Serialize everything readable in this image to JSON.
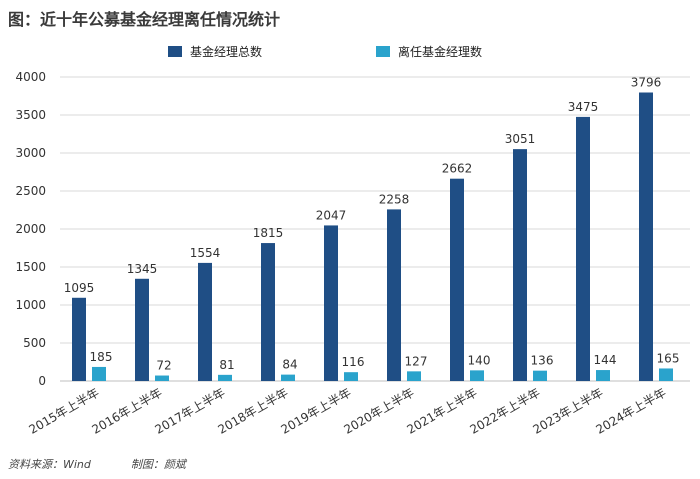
{
  "title": "图：近十年公募基金经理离任情况统计",
  "source": "资料来源：Wind",
  "maker": "制图：颜斌",
  "colors": {
    "total": "#1f4e85",
    "departed": "#2aa3cc",
    "grid": "#d9d9d9"
  },
  "chart_data": {
    "type": "bar",
    "categories": [
      "2015年上半年",
      "2016年上半年",
      "2017年上半年",
      "2018年上半年",
      "2019年上半年",
      "2020年上半年",
      "2021年上半年",
      "2022年上半年",
      "2023年上半年",
      "2024年上半年"
    ],
    "series": [
      {
        "name": "基金经理总数",
        "values": [
          1095,
          1345,
          1554,
          1815,
          2047,
          2258,
          2662,
          3051,
          3475,
          3796
        ]
      },
      {
        "name": "离任基金经理数",
        "values": [
          185,
          72,
          81,
          84,
          116,
          127,
          140,
          136,
          144,
          165
        ]
      }
    ],
    "ylim": [
      0,
      4000
    ],
    "yticks": [
      0,
      500,
      1000,
      1500,
      2000,
      2500,
      3000,
      3500,
      4000
    ],
    "legend": "top",
    "grid": true
  }
}
